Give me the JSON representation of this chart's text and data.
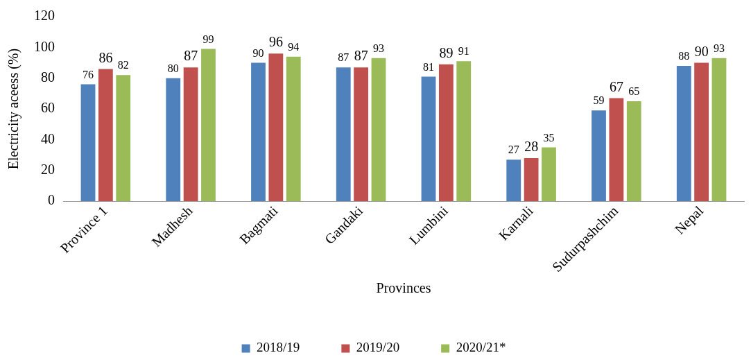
{
  "chart_data": {
    "type": "bar",
    "xlabel": "Provinces",
    "ylabel": "Electricity aceess (%)",
    "categories": [
      "Province 1",
      "Madhesh",
      "Bagmati",
      "Gandaki",
      "Lumbini",
      "Karnali",
      "Sudurpashchim",
      "Nepal"
    ],
    "series": [
      {
        "name": "2018/19",
        "color": "#4f81bd",
        "values": [
          76,
          80,
          90,
          87,
          81,
          27,
          59,
          88
        ]
      },
      {
        "name": "2019/20",
        "color": "#c0504d",
        "values": [
          86,
          87,
          96,
          87,
          89,
          28,
          67,
          90
        ]
      },
      {
        "name": "2020/21*",
        "color": "#9bbb59",
        "values": [
          82,
          99,
          94,
          93,
          91,
          35,
          65,
          93
        ]
      }
    ],
    "ylim": [
      0,
      120
    ],
    "yticks": [
      0,
      20,
      40,
      60,
      80,
      100,
      120
    ],
    "grid": false,
    "legend": "bottom",
    "data_labels": true
  }
}
